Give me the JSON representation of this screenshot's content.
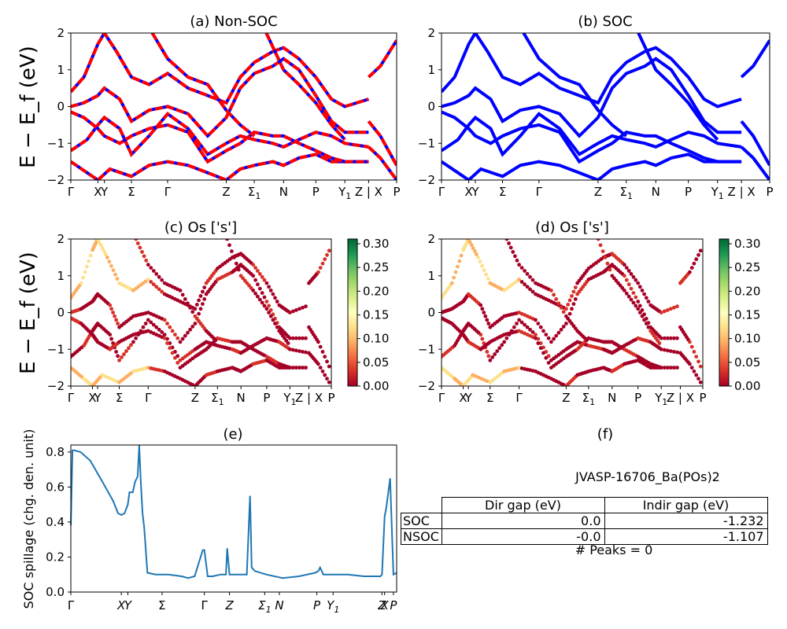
{
  "chart_data": [
    {
      "type": "line",
      "panel": "a",
      "title": "(a) Non-SOC",
      "ylabel": "E − E_f (eV)",
      "ylim": [
        -2,
        2
      ],
      "yticks": [
        "−2",
        "−1",
        "0",
        "1",
        "2"
      ],
      "kpath_labels": [
        "Γ",
        "X",
        "Y",
        "Σ",
        "Γ",
        "Z",
        "Σ1",
        "N",
        "P",
        "Y1",
        "Z | X",
        "P"
      ],
      "series": [
        {
          "color": "#ff0000",
          "style": "dashed-over-blue"
        }
      ]
    },
    {
      "type": "line",
      "panel": "b",
      "title": "(b) SOC",
      "ylim": [
        -2,
        2
      ],
      "yticks": [
        "−2",
        "−1",
        "0",
        "1",
        "2"
      ],
      "kpath_labels": [
        "Γ",
        "X",
        "Y",
        "Σ",
        "Γ",
        "Z",
        "Σ1",
        "N",
        "P",
        "Y1",
        "Z | X",
        "P"
      ],
      "series": [
        {
          "color": "#0000ff"
        }
      ]
    },
    {
      "type": "scatter",
      "panel": "c",
      "title": "(c)  Os ['s']",
      "ylabel": "E − E_f (eV)",
      "ylim": [
        -2,
        2
      ],
      "yticks": [
        "−2",
        "−1",
        "0",
        "1",
        "2"
      ],
      "kpath_labels": [
        "Γ",
        "X",
        "Y",
        "Σ",
        "Γ",
        "Z",
        "Σ1",
        "N",
        "P",
        "Y1",
        "Z | X",
        "P"
      ],
      "colorbar": {
        "min": 0.0,
        "max": 0.31,
        "ticks": [
          "0.00",
          "0.05",
          "0.10",
          "0.15",
          "0.20",
          "0.25",
          "0.30"
        ],
        "cmap": "RdYlGn"
      }
    },
    {
      "type": "scatter",
      "panel": "d",
      "title": "(d) Os ['s']",
      "ylim": [
        -2,
        2
      ],
      "yticks": [
        "−2",
        "−1",
        "0",
        "1",
        "2"
      ],
      "kpath_labels": [
        "Γ",
        "X",
        "Y",
        "Σ",
        "Γ",
        "Z",
        "Σ1",
        "N",
        "P",
        "Y1",
        "Z | X",
        "P"
      ],
      "colorbar": {
        "min": 0.0,
        "max": 0.31,
        "ticks": [
          "0.00",
          "0.05",
          "0.10",
          "0.15",
          "0.20",
          "0.25",
          "0.30"
        ],
        "cmap": "RdYlGn"
      }
    },
    {
      "type": "line",
      "panel": "e",
      "title": "(e)",
      "ylabel": "SOC spillage (chg. den. unit)",
      "ylim": [
        0,
        0.84
      ],
      "yticks": [
        "0.0",
        "0.2",
        "0.4",
        "0.6",
        "0.8"
      ],
      "xticks": [
        "Γ",
        "X",
        "Y",
        "Σ",
        "Γ",
        "Z",
        "Σ1",
        "N",
        "P",
        "Y1",
        "Z",
        "X",
        "P"
      ],
      "series": [
        {
          "color": "#1f77b4",
          "x": [
            0,
            0.005,
            0.01,
            0.03,
            0.06,
            0.1,
            0.13,
            0.145,
            0.155,
            0.165,
            0.175,
            0.18,
            0.19,
            0.197,
            0.205,
            0.21,
            0.215,
            0.22,
            0.225,
            0.235,
            0.26,
            0.28,
            0.3,
            0.34,
            0.36,
            0.38,
            0.395,
            0.405,
            0.41,
            0.42,
            0.435,
            0.46,
            0.476,
            0.48,
            0.487,
            0.5,
            0.52,
            0.54,
            0.55,
            0.555,
            0.565,
            0.6,
            0.65,
            0.7,
            0.75,
            0.76,
            0.765,
            0.775,
            0.8,
            0.85,
            0.9,
            0.95,
            0.955,
            0.963,
            0.968,
            0.98,
            0.99,
            1.0
          ],
          "y": [
            0.38,
            0.81,
            0.81,
            0.8,
            0.75,
            0.62,
            0.52,
            0.45,
            0.44,
            0.45,
            0.5,
            0.57,
            0.57,
            0.63,
            0.66,
            0.84,
            0.62,
            0.45,
            0.37,
            0.11,
            0.1,
            0.1,
            0.1,
            0.09,
            0.08,
            0.09,
            0.18,
            0.24,
            0.24,
            0.09,
            0.09,
            0.1,
            0.1,
            0.25,
            0.1,
            0.1,
            0.1,
            0.1,
            0.55,
            0.14,
            0.12,
            0.1,
            0.08,
            0.09,
            0.11,
            0.12,
            0.14,
            0.1,
            0.1,
            0.1,
            0.09,
            0.09,
            0.1,
            0.43,
            0.48,
            0.65,
            0.1,
            0.11
          ]
        }
      ]
    }
  ],
  "panel_f": {
    "title": "(f)",
    "material": "JVASP-16706_Ba(POs)2",
    "table": {
      "headers": [
        "",
        "Dir gap (eV)",
        "Indir gap (eV)"
      ],
      "rows": [
        [
          "SOC",
          "0.0",
          "-1.232"
        ],
        [
          "NSOC",
          "-0.0",
          "-1.107"
        ]
      ]
    },
    "peaks": "# Peaks = 0"
  }
}
